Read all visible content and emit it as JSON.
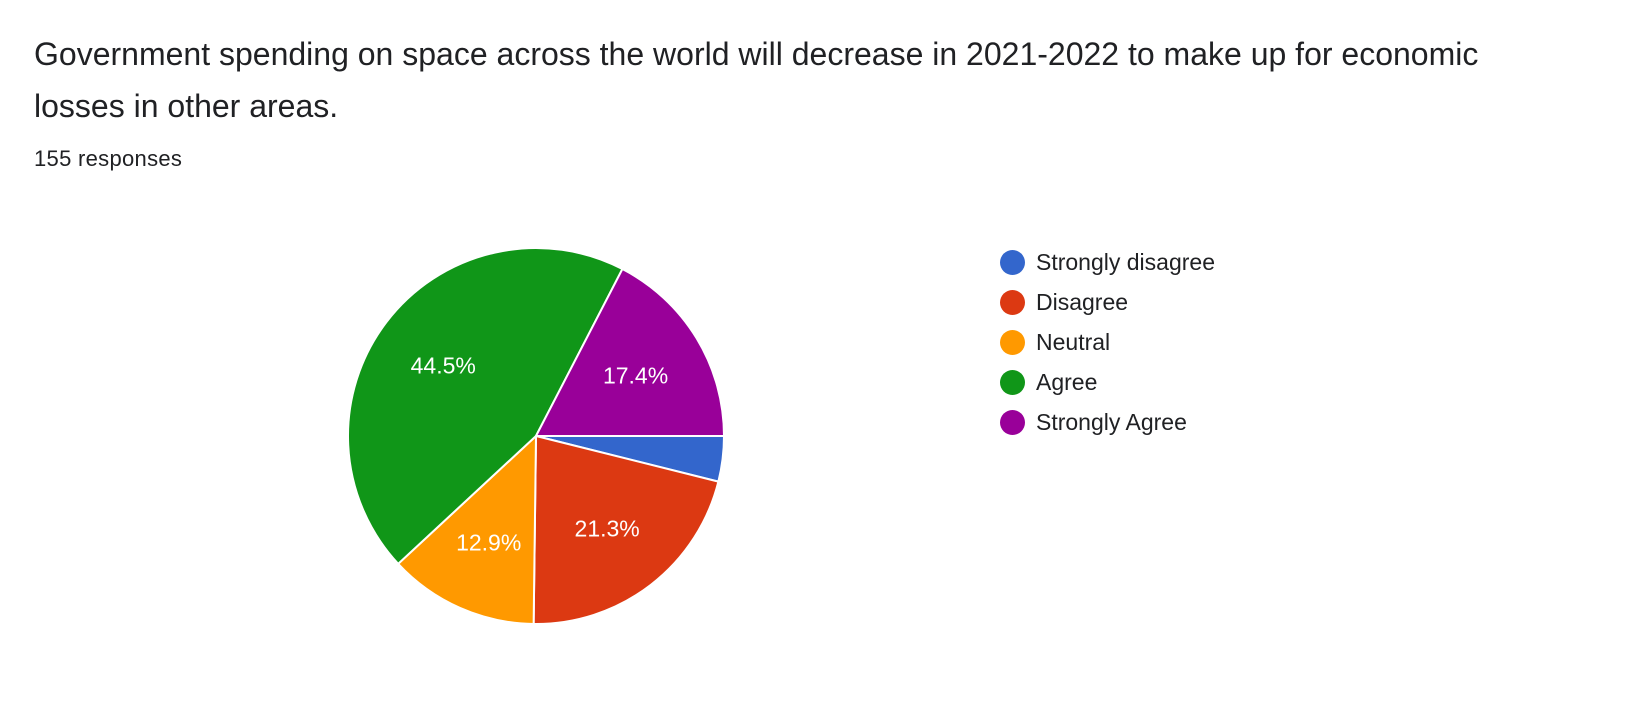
{
  "question": {
    "title": "Government spending on space across the world will decrease in 2021-2022 to make up for economic losses in other areas.",
    "response_count": "155 responses"
  },
  "chart_data": {
    "type": "pie",
    "title": "Government spending on space across the world will decrease in 2021-2022 to make up for economic losses in other areas.",
    "categories": [
      "Strongly disagree",
      "Disagree",
      "Neutral",
      "Agree",
      "Strongly Agree"
    ],
    "values": [
      3.9,
      21.3,
      12.9,
      44.5,
      17.4
    ],
    "value_labels": [
      "",
      "21.3%",
      "12.9%",
      "44.5%",
      "17.4%"
    ],
    "colors": [
      "#3366cc",
      "#dc3912",
      "#ff9900",
      "#109618",
      "#990099"
    ],
    "legend_position": "right"
  }
}
